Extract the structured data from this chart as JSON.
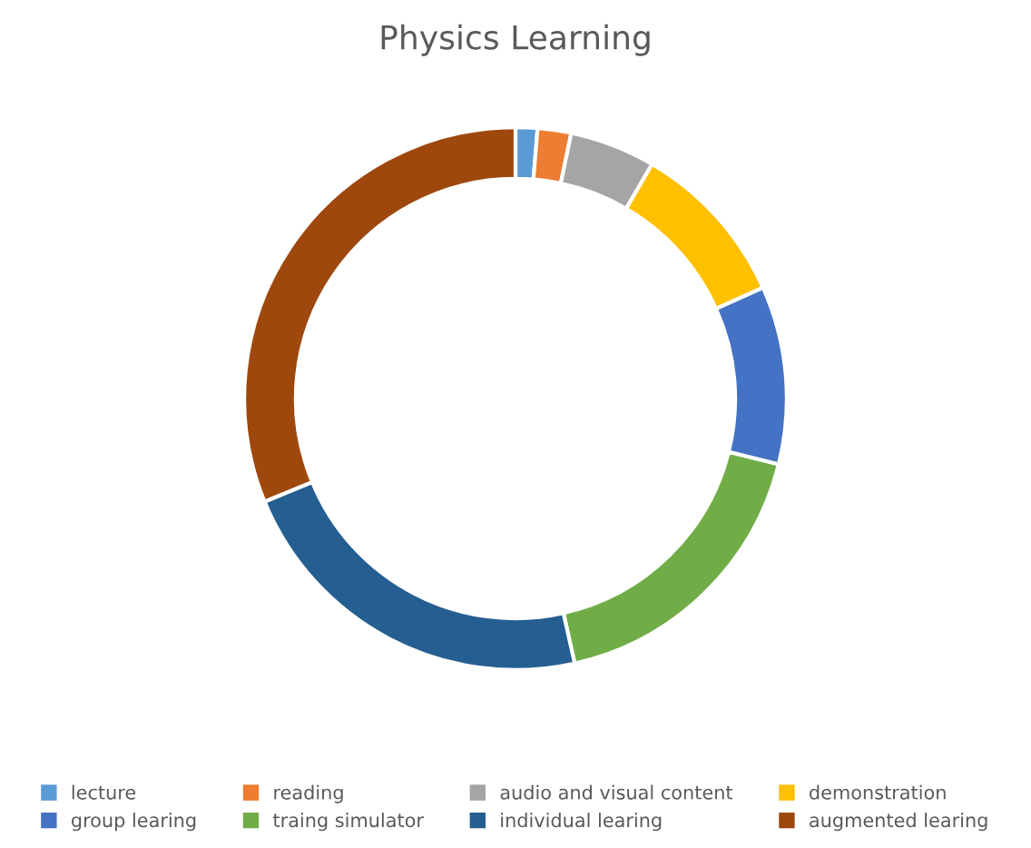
{
  "chart_data": {
    "type": "donut",
    "title": "Physics Learning",
    "categories": [
      "lecture",
      "reading",
      "audio and visual content",
      "demonstration",
      "group learing",
      "traing simulator",
      "individual learing",
      "augmented learing"
    ],
    "values": [
      1.3,
      2.0,
      5.1,
      9.9,
      10.6,
      17.6,
      22.3,
      31.2
    ],
    "colors": [
      "#5b9bd5",
      "#ed7d31",
      "#a5a5a5",
      "#ffc000",
      "#4472c4",
      "#70ad47",
      "#255e91",
      "#9e480e"
    ],
    "legend": "bottom"
  }
}
